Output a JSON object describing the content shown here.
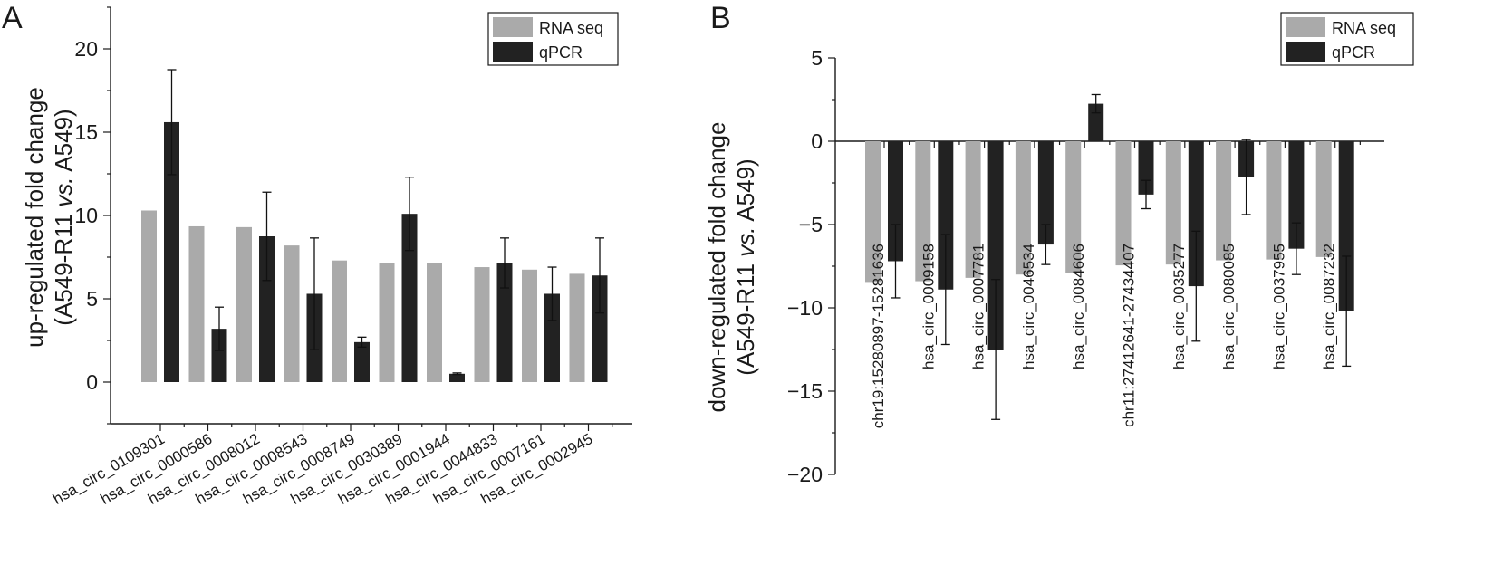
{
  "chart_data": [
    {
      "type": "bar",
      "panel_label": "A",
      "ylabel_line1": "up-regulated fold change",
      "ylabel_line2_parts": [
        "(A549-R11 ",
        "vs.",
        " A549)"
      ],
      "ylim": [
        -2.5,
        22.5
      ],
      "yticks": [
        0,
        5,
        10,
        15,
        20
      ],
      "grid": false,
      "legend_placement": "top-right",
      "categories": [
        "hsa_circ_0109301",
        "hsa_circ_0000586",
        "hsa_circ_0008012",
        "hsa_circ_0008543",
        "hsa_circ_0008749",
        "hsa_circ_0030389",
        "hsa_circ_0001944",
        "hsa_circ_0044833",
        "hsa_circ_0007161",
        "hsa_circ_0002945"
      ],
      "series": [
        {
          "name": "RNA seq",
          "color": "#aaaaaa",
          "values": [
            10.3,
            9.35,
            9.3,
            8.2,
            7.3,
            7.15,
            7.15,
            6.9,
            6.75,
            6.5
          ],
          "errors": null
        },
        {
          "name": "qPCR",
          "color": "#222222",
          "values": [
            15.6,
            3.2,
            8.75,
            5.3,
            2.4,
            10.1,
            0.5,
            7.15,
            5.3,
            6.4
          ],
          "errors": [
            3.15,
            1.3,
            2.65,
            3.35,
            0.3,
            2.2,
            0.05,
            1.5,
            1.6,
            2.25
          ]
        }
      ]
    },
    {
      "type": "bar",
      "panel_label": "B",
      "ylabel_line1": "down-regulated fold change",
      "ylabel_line2_parts": [
        "(A549-R11 ",
        "vs.",
        " A549)"
      ],
      "ylim": [
        -20,
        5
      ],
      "yticks": [
        5,
        0,
        -5,
        -10,
        -15,
        -20
      ],
      "grid": false,
      "legend_placement": "top-right",
      "categories": [
        "chr19:15280897-15281636",
        "hsa_circ_0009158",
        "hsa_circ_0007781",
        "hsa_circ_0046534",
        "hsa_circ_0084606",
        "chr11:27412641-27434407",
        "hsa_circ_0035277",
        "hsa_circ_0080085",
        "hsa_circ_0037955",
        "hsa_circ_0087232"
      ],
      "series": [
        {
          "name": "RNA seq",
          "color": "#aaaaaa",
          "values": [
            -8.5,
            -8.4,
            -8.2,
            -8.0,
            -7.9,
            -7.45,
            -7.4,
            -7.15,
            -7.1,
            -6.95
          ],
          "errors": null
        },
        {
          "name": "qPCR",
          "color": "#222222",
          "values": [
            -7.2,
            -8.9,
            -12.5,
            -6.2,
            2.25,
            -3.2,
            -8.7,
            -2.15,
            -6.45,
            -10.2
          ],
          "errors": [
            2.2,
            3.3,
            4.2,
            1.2,
            0.55,
            0.85,
            3.3,
            2.25,
            1.55,
            3.3
          ]
        }
      ]
    }
  ]
}
